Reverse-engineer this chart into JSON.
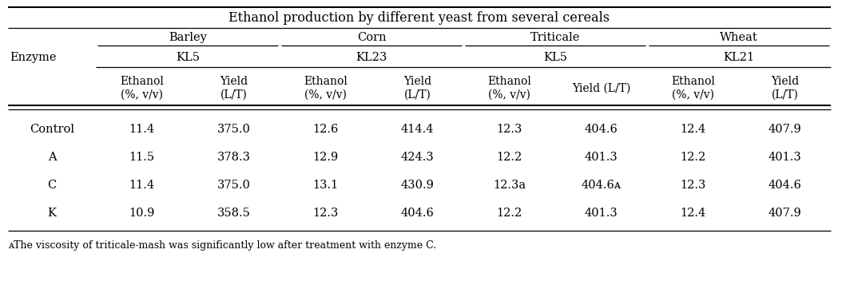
{
  "title": "Ethanol production by different yeast from several cereals",
  "footnote_super": "ᴀ",
  "footnote_text": "The viscosity of triticale-mash was significantly low after treatment with enzyme C.",
  "cereals": [
    "Barley",
    "Corn",
    "Triticale",
    "Wheat"
  ],
  "yeasts": [
    "KL5",
    "KL23",
    "KL5",
    "KL21"
  ],
  "col_headers": [
    [
      "Ethanol",
      "(%, v/v)"
    ],
    [
      "Yield",
      "(L/T)"
    ],
    [
      "Ethanol",
      "(%, v/v)"
    ],
    [
      "Yield",
      "(L/T)"
    ],
    [
      "Ethanol",
      "(%, v/v)"
    ],
    [
      "Yield (L/T)",
      ""
    ],
    [
      "Ethanol",
      "(%, v/v)"
    ],
    [
      "Yield",
      "(L/T)"
    ]
  ],
  "row_labels": [
    "Control",
    "A",
    "C",
    "K"
  ],
  "data": [
    [
      "11.4",
      "375.0",
      "12.6",
      "414.4",
      "12.3",
      "404.6",
      "12.4",
      "407.9"
    ],
    [
      "11.5",
      "378.3",
      "12.9",
      "424.3",
      "12.2",
      "401.3",
      "12.2",
      "401.3"
    ],
    [
      "11.4",
      "375.0",
      "13.1",
      "430.9",
      "12.3a",
      "404.6ᴀ",
      "12.3",
      "404.6"
    ],
    [
      "10.9",
      "358.5",
      "12.3",
      "404.6",
      "12.2",
      "401.3",
      "12.4",
      "407.9"
    ]
  ],
  "enzyme_label": "Enzyme",
  "background_color": "#ffffff",
  "text_color": "#000000"
}
